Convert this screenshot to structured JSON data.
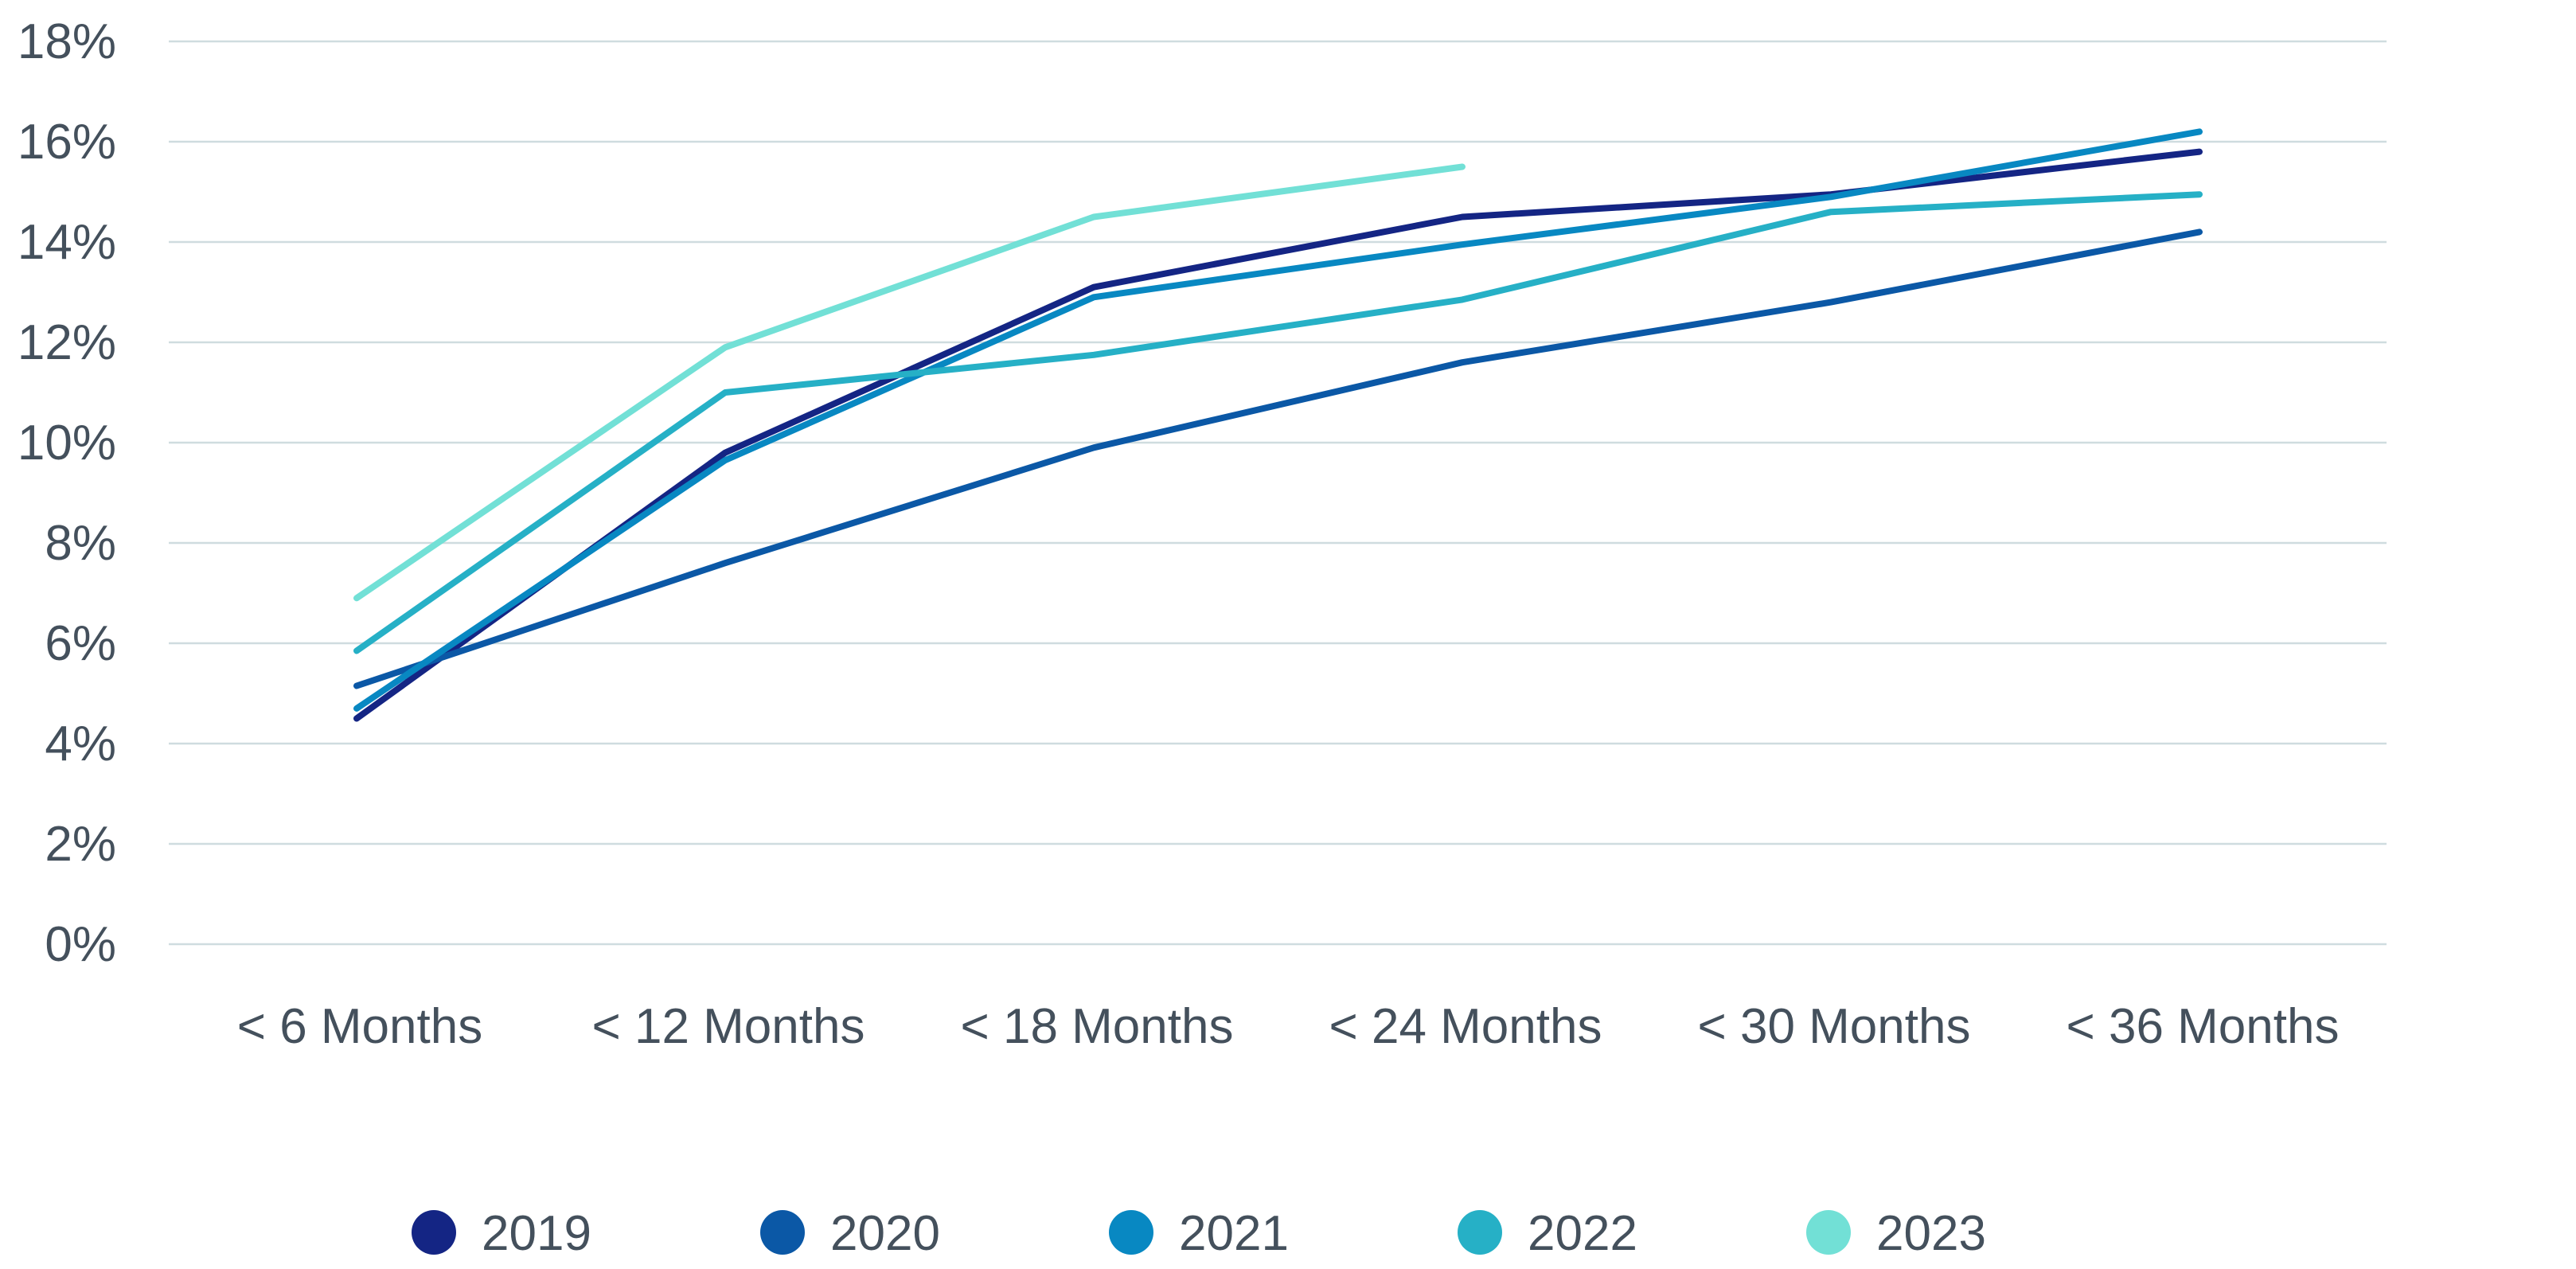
{
  "chart_data": {
    "type": "line",
    "title": "",
    "xlabel": "",
    "ylabel": "",
    "categories": [
      "< 6 Months",
      "< 12 Months",
      "< 18 Months",
      "< 24 Months",
      "< 30 Months",
      "< 36 Months"
    ],
    "y_ticks": [
      "0%",
      "2%",
      "4%",
      "6%",
      "8%",
      "10%",
      "12%",
      "14%",
      "16%",
      "18%"
    ],
    "ylim": [
      0,
      18
    ],
    "grid": "horizontal",
    "legend_position": "bottom",
    "series": [
      {
        "name": "2019",
        "color": "#142584",
        "values": [
          4.5,
          9.8,
          13.1,
          14.5,
          14.95,
          15.8
        ]
      },
      {
        "name": "2020",
        "color": "#0b58a6",
        "values": [
          5.15,
          7.6,
          9.9,
          11.6,
          12.8,
          14.2
        ]
      },
      {
        "name": "2021",
        "color": "#0888c2",
        "values": [
          4.7,
          9.65,
          12.9,
          13.95,
          14.9,
          16.2
        ]
      },
      {
        "name": "2022",
        "color": "#26b0c6",
        "values": [
          5.85,
          11.0,
          11.75,
          12.85,
          14.6,
          14.95
        ]
      },
      {
        "name": "2023",
        "color": "#72e0d6",
        "values": [
          6.9,
          11.9,
          14.5,
          15.5,
          null,
          null
        ]
      }
    ]
  }
}
